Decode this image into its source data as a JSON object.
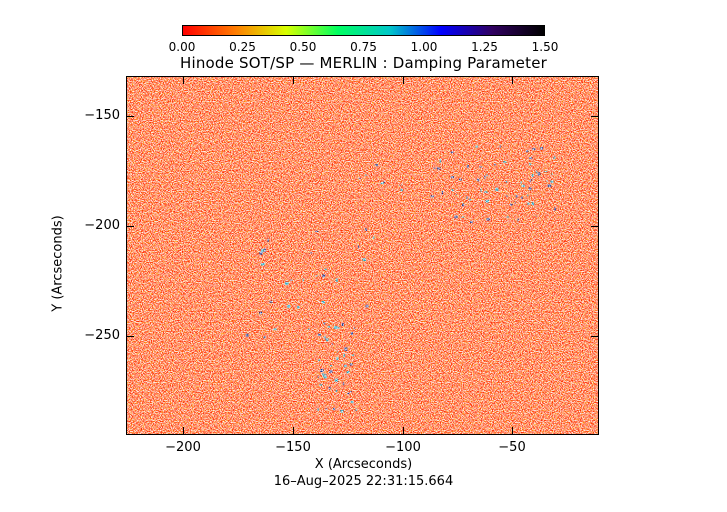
{
  "title": "Hinode SOT/SP — MERLIN : Damping Parameter",
  "colorbar": {
    "ticks": [
      "0.00",
      "0.25",
      "0.50",
      "0.75",
      "1.00",
      "1.25",
      "1.50"
    ],
    "colors": [
      "#ff0000",
      "#ff7a00",
      "#d8ff00",
      "#00ff60",
      "#00c8c8",
      "#0000ff",
      "#300060",
      "#000000"
    ]
  },
  "axes": {
    "xlabel": "X (Arcseconds)",
    "ylabel": "Y (Arcseconds)",
    "xticks": [
      "−200",
      "−150",
      "−100",
      "−50"
    ],
    "yticks": [
      "−150",
      "−200",
      "−250"
    ],
    "xrange": [
      -225,
      -12
    ],
    "yrange": [
      -295,
      -132
    ]
  },
  "timestamp": "16–Aug–2025 22:31:15.664"
}
